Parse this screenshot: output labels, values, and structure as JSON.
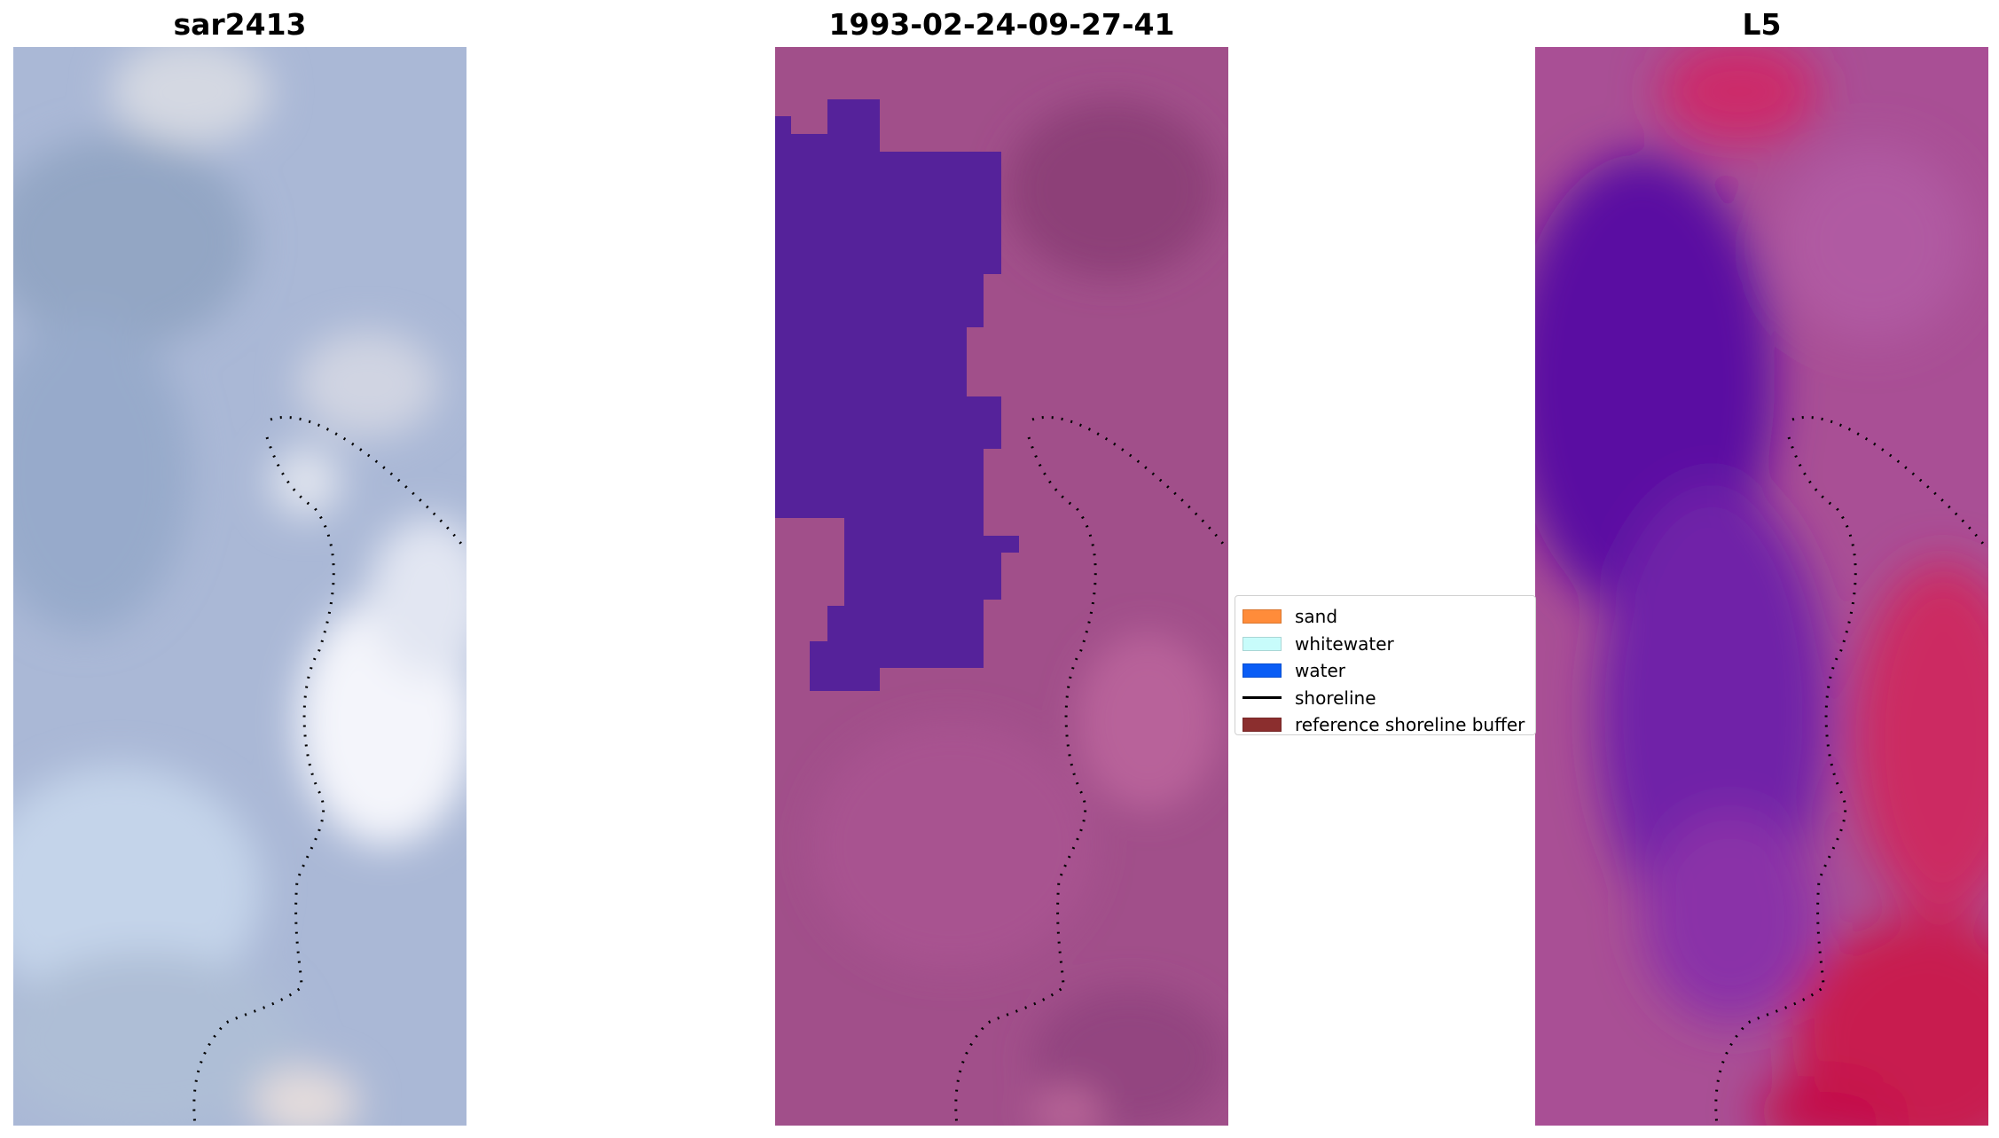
{
  "panels": [
    {
      "title": "sar2413"
    },
    {
      "title": "1993-02-24-09-27-41"
    },
    {
      "title": "L5"
    }
  ],
  "legend": [
    {
      "label": "sand",
      "color": "#ff8c3a",
      "kind": "patch"
    },
    {
      "label": "whitewater",
      "color": "#c8fcfb",
      "kind": "patch"
    },
    {
      "label": "water",
      "color": "#0a5df5",
      "kind": "patch"
    },
    {
      "label": "shoreline",
      "color": "#000000",
      "kind": "line"
    },
    {
      "label": "reference shoreline buffer",
      "color": "#8b2e2e",
      "kind": "patch"
    }
  ]
}
